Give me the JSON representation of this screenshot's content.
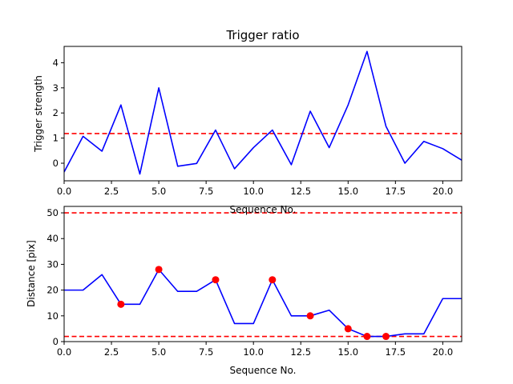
{
  "chart_data": [
    {
      "type": "line",
      "title": "Trigger ratio",
      "xlabel": "Sequence No.",
      "ylabel": "Trigger strength",
      "xlim": [
        0,
        21
      ],
      "ylim": [
        -0.7,
        4.65
      ],
      "xticks": [
        0,
        2.5,
        5,
        7.5,
        10,
        12.5,
        15,
        17.5,
        20
      ],
      "xtick_labels": [
        "0.0",
        "2.5",
        "5.0",
        "7.5",
        "10.0",
        "12.5",
        "15.0",
        "17.5",
        "20.0"
      ],
      "yticks": [
        0,
        1,
        2,
        3,
        4
      ],
      "ytick_labels": [
        "0",
        "1",
        "2",
        "3",
        "4"
      ],
      "line_color": "#0000ff",
      "x": [
        0,
        1,
        2,
        3,
        4,
        5,
        6,
        7,
        8,
        9,
        10,
        11,
        12,
        13,
        14,
        15,
        16,
        17,
        18,
        19,
        20,
        21
      ],
      "series": [
        {
          "values": [
            -0.35,
            1.07,
            0.48,
            2.32,
            -0.43,
            3.0,
            -0.12,
            -0.01,
            1.32,
            -0.22,
            0.62,
            1.32,
            -0.06,
            2.07,
            0.62,
            2.32,
            4.45,
            1.47,
            0.0,
            0.87,
            0.58,
            0.12
          ]
        }
      ],
      "hlines": [
        {
          "y": 1.18,
          "color": "#ff0000",
          "style": "dashed"
        }
      ],
      "grid": false
    },
    {
      "type": "line",
      "title": "",
      "xlabel": "Sequence No.",
      "ylabel": "Distance [pix]",
      "xlim": [
        0,
        21
      ],
      "ylim": [
        0,
        52.5
      ],
      "xticks": [
        0,
        2.5,
        5,
        7.5,
        10,
        12.5,
        15,
        17.5,
        20
      ],
      "xtick_labels": [
        "0.0",
        "2.5",
        "5.0",
        "7.5",
        "10.0",
        "12.5",
        "15.0",
        "17.5",
        "20.0"
      ],
      "yticks": [
        0,
        10,
        20,
        30,
        40,
        50
      ],
      "ytick_labels": [
        "0",
        "10",
        "20",
        "30",
        "40",
        "50"
      ],
      "line_color": "#0000ff",
      "x": [
        0,
        1,
        2,
        3,
        4,
        5,
        6,
        7,
        8,
        9,
        10,
        11,
        12,
        13,
        14,
        15,
        16,
        17,
        18,
        19,
        20,
        21
      ],
      "series": [
        {
          "values": [
            20,
            20,
            26,
            14.5,
            14.5,
            28,
            19.5,
            19.5,
            24,
            7,
            7,
            24,
            10,
            10,
            12.2,
            5,
            2,
            2,
            3,
            3,
            16.7,
            16.7
          ]
        }
      ],
      "markers": {
        "color": "#ff0000",
        "x": [
          3,
          5,
          8,
          11,
          13,
          15,
          16,
          17
        ],
        "y": [
          14.5,
          28,
          24,
          24,
          10,
          5,
          2,
          2
        ]
      },
      "hlines": [
        {
          "y": 50,
          "color": "#ff0000",
          "style": "dashed"
        },
        {
          "y": 2,
          "color": "#ff0000",
          "style": "dashed"
        }
      ],
      "grid": false
    }
  ]
}
